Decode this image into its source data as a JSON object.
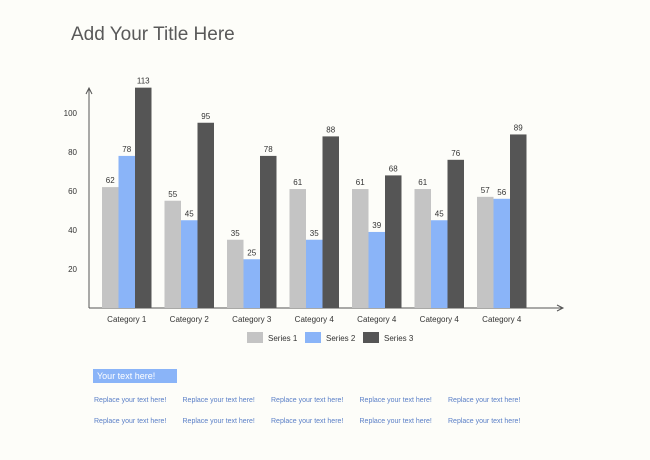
{
  "page": {
    "title": "Add Your Title Here",
    "badge": "Your text here!",
    "text_rows": [
      [
        "Replace your text here!",
        "Replace your text here!",
        "Replace your text here!",
        "Replace your text here!",
        "Replace your text here!"
      ],
      [
        "Replace your text here!",
        "Replace your text here!",
        "Replace your text here!",
        "Replace your text here!",
        "Replace your text here!"
      ]
    ]
  },
  "chart_data": {
    "type": "bar",
    "title": "Add Your Title Here",
    "xlabel": "",
    "ylabel": "",
    "categories": [
      "Category 1",
      "Category 2",
      "Category 3",
      "Category 4",
      "Category 4",
      "Category 4",
      "Category 4"
    ],
    "series": [
      {
        "name": "Series 1",
        "color": "#c4c4c4",
        "values": [
          62,
          55,
          35,
          61,
          61,
          61,
          57
        ]
      },
      {
        "name": "Series 2",
        "color": "#8ab4f8",
        "values": [
          78,
          45,
          25,
          35,
          39,
          45,
          56
        ]
      },
      {
        "name": "Series 3",
        "color": "#555555",
        "values": [
          113,
          95,
          78,
          88,
          68,
          76,
          89
        ]
      }
    ],
    "ylim": [
      0,
      115
    ],
    "yticks": [
      20,
      40,
      60,
      80,
      100
    ],
    "grid": false,
    "legend": "bottom",
    "data_labels": true
  }
}
